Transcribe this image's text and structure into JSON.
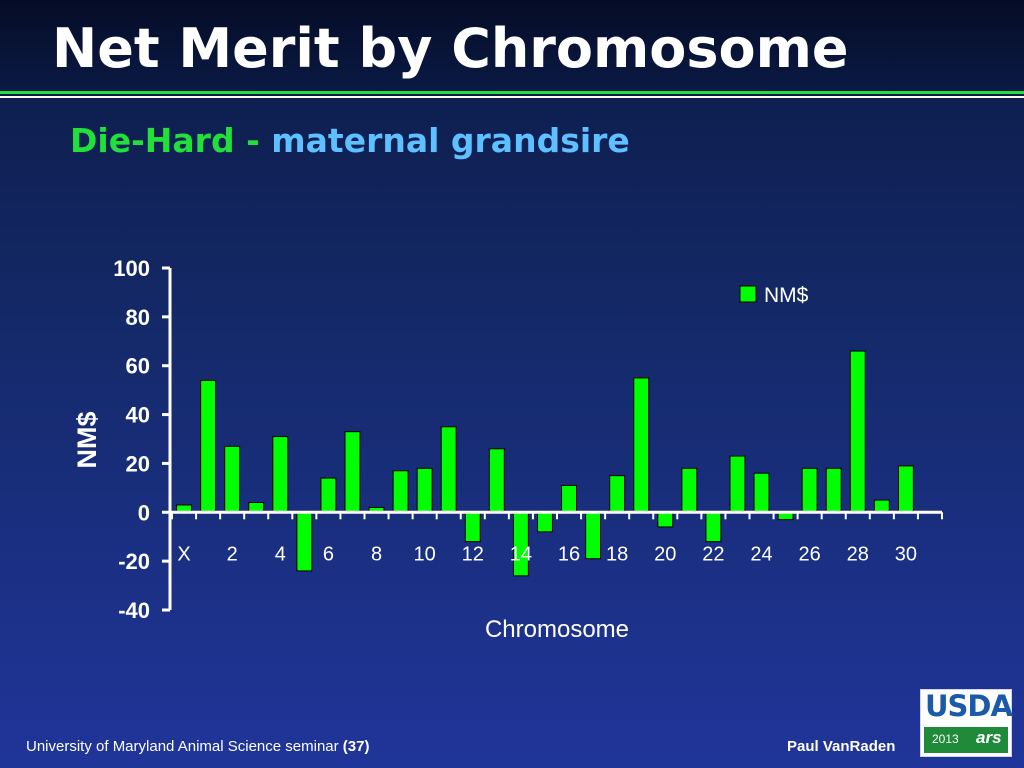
{
  "slide": {
    "title": "Net Merit by Chromosome",
    "subtitle_part1": "Die-Hard",
    "subtitle_sep": " - ",
    "subtitle_part2": "maternal grandsire"
  },
  "footer": {
    "left_text": "University of Maryland Animal Science seminar ",
    "left_page": "(37)",
    "right_text": "Paul VanRaden"
  },
  "logo": {
    "text": "USDA",
    "year": "2013",
    "mark": "ars"
  },
  "colors": {
    "bar": "#00ff00",
    "bar_outline": "#000000",
    "axis": "#ffffff",
    "text": "#ffffff"
  },
  "chart_data": {
    "type": "bar",
    "title": "",
    "xlabel": "Chromosome",
    "ylabel": "NM$",
    "ylim": [
      -40,
      100
    ],
    "yticks": [
      100,
      80,
      60,
      40,
      20,
      0,
      -20,
      -40
    ],
    "legend": {
      "position": "top-right"
    },
    "categories": [
      "X",
      "1",
      "2",
      "3",
      "4",
      "5",
      "6",
      "7",
      "8",
      "9",
      "10",
      "11",
      "12",
      "13",
      "14",
      "15",
      "16",
      "17",
      "18",
      "19",
      "20",
      "21",
      "22",
      "23",
      "24",
      "25",
      "26",
      "27",
      "28",
      "29",
      "30",
      "31"
    ],
    "xtick_labels": [
      "X",
      "2",
      "4",
      "6",
      "8",
      "10",
      "12",
      "14",
      "16",
      "18",
      "20",
      "22",
      "24",
      "26",
      "28",
      "30"
    ],
    "series": [
      {
        "name": "NM$",
        "values": [
          3,
          54,
          27,
          4,
          31,
          -24,
          14,
          33,
          2,
          17,
          18,
          35,
          -12,
          26,
          -26,
          -8,
          11,
          -19,
          15,
          55,
          -6,
          18,
          -12,
          23,
          16,
          -3,
          18,
          18,
          66,
          5,
          19,
          0
        ]
      }
    ]
  }
}
